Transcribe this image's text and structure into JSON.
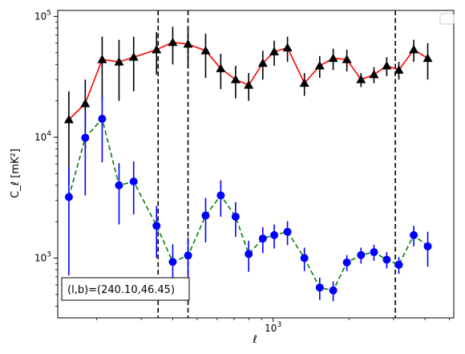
{
  "chart_data": {
    "type": "line",
    "xscale": "log",
    "yscale": "log",
    "xlim": [
      140,
      5200
    ],
    "ylim": [
      320,
      112000
    ],
    "xlabel": "ℓ",
    "ylabel": "C_ℓ  [mK²]",
    "x_major_ticks": [
      {
        "value": 1000,
        "base": "10",
        "exp": "3"
      }
    ],
    "y_major_ticks": [
      {
        "value": 1000,
        "base": "10",
        "exp": "3"
      },
      {
        "value": 10000,
        "base": "10",
        "exp": "4"
      },
      {
        "value": 100000,
        "base": "10",
        "exp": "5"
      }
    ],
    "vlines": [
      350,
      460,
      3050
    ],
    "annotation": "(l,b)=(240.10,46.45)",
    "legend": {
      "placement": "top-right",
      "entries": []
    },
    "series": [
      {
        "style": "upper",
        "line_color": "#ff0000",
        "marker_color": "#000000",
        "errorbar_color": "#000000",
        "line_style": "solid",
        "marker": "triangle",
        "points": [
          {
            "x": 155,
            "y": 14000,
            "lo": 4000,
            "hi": 24000
          },
          {
            "x": 180,
            "y": 19000,
            "lo": 8000,
            "hi": 30000
          },
          {
            "x": 210,
            "y": 44000,
            "lo": 20000,
            "hi": 68000
          },
          {
            "x": 245,
            "y": 42000,
            "lo": 20000,
            "hi": 64000
          },
          {
            "x": 280,
            "y": 46000,
            "lo": 24000,
            "hi": 68000
          },
          {
            "x": 345,
            "y": 53000,
            "lo": 33000,
            "hi": 74000
          },
          {
            "x": 400,
            "y": 61000,
            "lo": 40000,
            "hi": 82000
          },
          {
            "x": 460,
            "y": 59000,
            "lo": 38000,
            "hi": 80000
          },
          {
            "x": 540,
            "y": 52000,
            "lo": 31000,
            "hi": 72000
          },
          {
            "x": 620,
            "y": 37000,
            "lo": 25000,
            "hi": 49000
          },
          {
            "x": 710,
            "y": 30000,
            "lo": 21000,
            "hi": 39000
          },
          {
            "x": 800,
            "y": 27000,
            "lo": 20000,
            "hi": 34000
          },
          {
            "x": 910,
            "y": 41000,
            "lo": 30000,
            "hi": 52000
          },
          {
            "x": 1010,
            "y": 51000,
            "lo": 39000,
            "hi": 63000
          },
          {
            "x": 1140,
            "y": 55000,
            "lo": 42000,
            "hi": 68000
          },
          {
            "x": 1330,
            "y": 28000,
            "lo": 22000,
            "hi": 34000
          },
          {
            "x": 1530,
            "y": 39000,
            "lo": 31000,
            "hi": 47000
          },
          {
            "x": 1730,
            "y": 45000,
            "lo": 36000,
            "hi": 54000
          },
          {
            "x": 1960,
            "y": 44000,
            "lo": 35000,
            "hi": 53000
          },
          {
            "x": 2230,
            "y": 30000,
            "lo": 26000,
            "hi": 34000
          },
          {
            "x": 2510,
            "y": 33000,
            "lo": 28000,
            "hi": 38000
          },
          {
            "x": 2820,
            "y": 39000,
            "lo": 32000,
            "hi": 46000
          },
          {
            "x": 3150,
            "y": 36000,
            "lo": 30000,
            "hi": 42000
          },
          {
            "x": 3610,
            "y": 53000,
            "lo": 42000,
            "hi": 64000
          },
          {
            "x": 4100,
            "y": 45000,
            "lo": 30000,
            "hi": 60000
          }
        ]
      },
      {
        "style": "lower",
        "line_color": "#008000",
        "marker_color": "#0000ff",
        "errorbar_color": "#0000ff",
        "line_style": "dashed",
        "marker": "circle",
        "points": [
          {
            "x": 155,
            "y": 3200,
            "lo": 720,
            "hi": 5700
          },
          {
            "x": 180,
            "y": 9900,
            "lo": 3300,
            "hi": 16500
          },
          {
            "x": 210,
            "y": 14200,
            "lo": 6200,
            "hi": 22000
          },
          {
            "x": 245,
            "y": 4000,
            "lo": 1900,
            "hi": 6100
          },
          {
            "x": 280,
            "y": 4300,
            "lo": 2300,
            "hi": 6300
          },
          {
            "x": 345,
            "y": 1850,
            "lo": 1000,
            "hi": 2700
          },
          {
            "x": 400,
            "y": 930,
            "lo": 560,
            "hi": 1300
          },
          {
            "x": 460,
            "y": 1050,
            "lo": 620,
            "hi": 1480
          },
          {
            "x": 540,
            "y": 2250,
            "lo": 1350,
            "hi": 3150
          },
          {
            "x": 620,
            "y": 3300,
            "lo": 2200,
            "hi": 4400
          },
          {
            "x": 710,
            "y": 2200,
            "lo": 1500,
            "hi": 2900
          },
          {
            "x": 800,
            "y": 1080,
            "lo": 770,
            "hi": 1390
          },
          {
            "x": 910,
            "y": 1450,
            "lo": 1100,
            "hi": 1800
          },
          {
            "x": 1010,
            "y": 1550,
            "lo": 1200,
            "hi": 1900
          },
          {
            "x": 1140,
            "y": 1650,
            "lo": 1280,
            "hi": 2020
          },
          {
            "x": 1330,
            "y": 1000,
            "lo": 780,
            "hi": 1220
          },
          {
            "x": 1530,
            "y": 570,
            "lo": 450,
            "hi": 690
          },
          {
            "x": 1730,
            "y": 540,
            "lo": 440,
            "hi": 640
          },
          {
            "x": 1960,
            "y": 920,
            "lo": 780,
            "hi": 1060
          },
          {
            "x": 2230,
            "y": 1060,
            "lo": 900,
            "hi": 1220
          },
          {
            "x": 2510,
            "y": 1120,
            "lo": 950,
            "hi": 1290
          },
          {
            "x": 2820,
            "y": 970,
            "lo": 820,
            "hi": 1120
          },
          {
            "x": 3150,
            "y": 880,
            "lo": 740,
            "hi": 1020
          },
          {
            "x": 3610,
            "y": 1550,
            "lo": 1250,
            "hi": 1850
          },
          {
            "x": 4100,
            "y": 1250,
            "lo": 850,
            "hi": 1650
          }
        ]
      }
    ]
  }
}
